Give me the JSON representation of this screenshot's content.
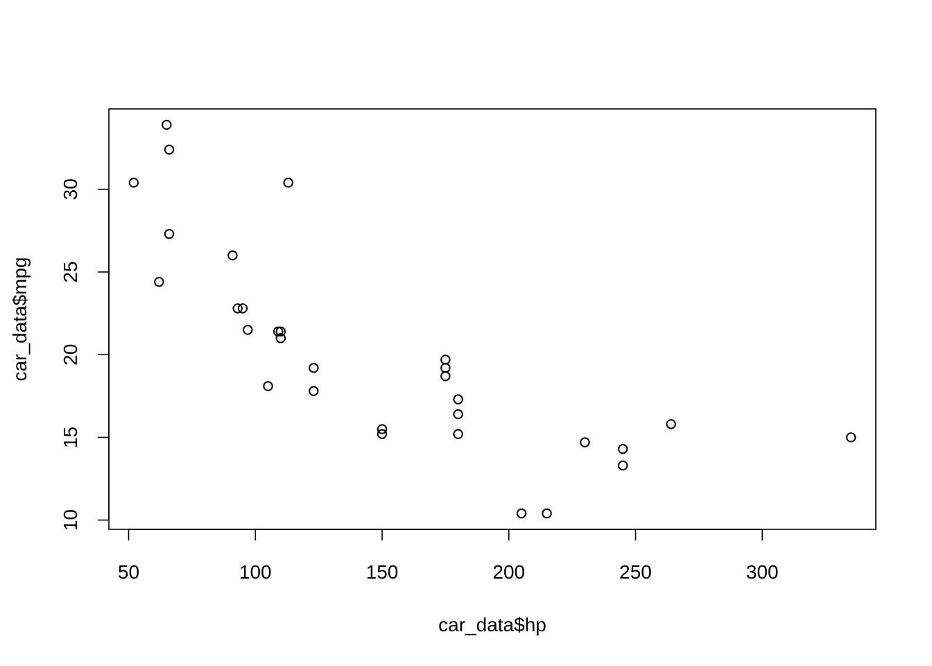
{
  "chart_data": {
    "type": "scatter",
    "title": "",
    "xlabel": "car_data$hp",
    "ylabel": "car_data$mpg",
    "xlim": [
      42.2,
      344.8
    ],
    "ylim": [
      9.44,
      34.86
    ],
    "xticks": [
      50,
      100,
      150,
      200,
      250,
      300
    ],
    "yticks": [
      10,
      15,
      20,
      25,
      30
    ],
    "xtick_labels": [
      "50",
      "100",
      "150",
      "200",
      "250",
      "300"
    ],
    "ytick_labels": [
      "10",
      "15",
      "20",
      "25",
      "30"
    ],
    "grid": false,
    "marker": "open-circle",
    "colors": {
      "points": "#000000",
      "axes": "#000000",
      "background": "#ffffff"
    },
    "points": [
      {
        "x": 110,
        "y": 21.0
      },
      {
        "x": 110,
        "y": 21.0
      },
      {
        "x": 93,
        "y": 22.8
      },
      {
        "x": 110,
        "y": 21.4
      },
      {
        "x": 175,
        "y": 18.7
      },
      {
        "x": 105,
        "y": 18.1
      },
      {
        "x": 245,
        "y": 14.3
      },
      {
        "x": 62,
        "y": 24.4
      },
      {
        "x": 95,
        "y": 22.8
      },
      {
        "x": 123,
        "y": 19.2
      },
      {
        "x": 123,
        "y": 17.8
      },
      {
        "x": 180,
        "y": 16.4
      },
      {
        "x": 180,
        "y": 17.3
      },
      {
        "x": 180,
        "y": 15.2
      },
      {
        "x": 205,
        "y": 10.4
      },
      {
        "x": 215,
        "y": 10.4
      },
      {
        "x": 230,
        "y": 14.7
      },
      {
        "x": 66,
        "y": 32.4
      },
      {
        "x": 52,
        "y": 30.4
      },
      {
        "x": 65,
        "y": 33.9
      },
      {
        "x": 97,
        "y": 21.5
      },
      {
        "x": 150,
        "y": 15.5
      },
      {
        "x": 150,
        "y": 15.2
      },
      {
        "x": 245,
        "y": 13.3
      },
      {
        "x": 175,
        "y": 19.2
      },
      {
        "x": 66,
        "y": 27.3
      },
      {
        "x": 91,
        "y": 26.0
      },
      {
        "x": 113,
        "y": 30.4
      },
      {
        "x": 264,
        "y": 15.8
      },
      {
        "x": 175,
        "y": 19.7
      },
      {
        "x": 335,
        "y": 15.0
      },
      {
        "x": 109,
        "y": 21.4
      }
    ]
  }
}
